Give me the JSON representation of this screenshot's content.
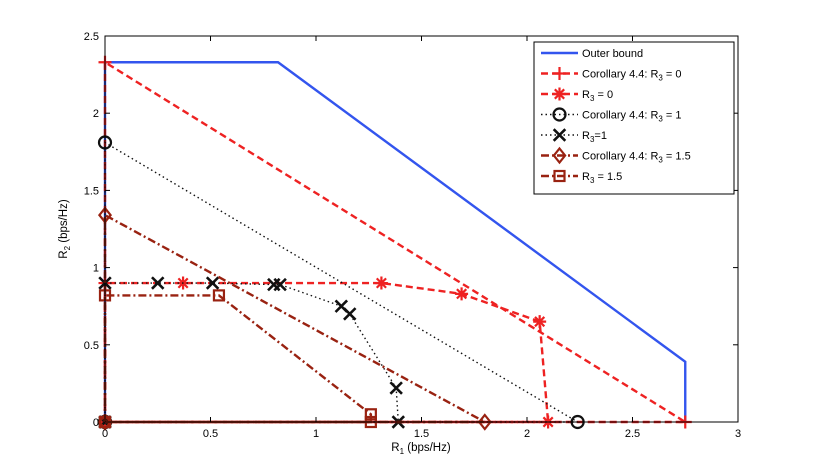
{
  "chart_data": {
    "type": "line",
    "title": "",
    "xlabel": {
      "main": "R",
      "sub": "1",
      "rest": " (bps/Hz)"
    },
    "ylabel": {
      "main": "R",
      "sub": "2",
      "rest": " (bps/Hz)"
    },
    "xlim": [
      0,
      3
    ],
    "ylim": [
      0,
      2.5
    ],
    "xticks": [
      0,
      0.5,
      1,
      1.5,
      2,
      2.5,
      3
    ],
    "xtick_labels": [
      "0",
      "0.5",
      "1",
      "1.5",
      "2",
      "2.5",
      "3"
    ],
    "yticks": [
      0,
      0.5,
      1,
      1.5,
      2,
      2.5
    ],
    "ytick_labels": [
      "0",
      "0.5",
      "1",
      "1.5",
      "2",
      "2.5"
    ],
    "grid": false,
    "legend_position": "top-right",
    "series": [
      {
        "key": "outer",
        "name": "Outer bound",
        "legend": {
          "main": "Outer bound",
          "sub": "",
          "rest": ""
        },
        "color": "#3355ee",
        "line": "solid",
        "marker": "none",
        "x": [
          0,
          0,
          0.82,
          2.75,
          2.75
        ],
        "y": [
          0,
          2.33,
          2.33,
          0.39,
          0
        ]
      },
      {
        "key": "cor0",
        "name": "Corollary 4.4: R3 = 0",
        "legend": {
          "main": "Corollary 4.4: R",
          "sub": "3",
          "rest": " = 0"
        },
        "color": "#ee2222",
        "line": "dashed",
        "marker": "plus",
        "x": [
          0,
          0,
          2.75,
          0
        ],
        "y": [
          0,
          2.33,
          0,
          0
        ]
      },
      {
        "key": "r0",
        "name": "R3 = 0",
        "legend": {
          "main": "R",
          "sub": "3",
          "rest": " = 0"
        },
        "color": "#ee2222",
        "line": "dashed",
        "marker": "asterisk",
        "x": [
          0,
          0,
          0.37,
          1.31,
          1.69,
          2.06,
          2.1,
          0
        ],
        "y": [
          0,
          0.9,
          0.9,
          0.9,
          0.83,
          0.65,
          0,
          0
        ]
      },
      {
        "key": "cor1",
        "name": "Corollary 4.4: R3 = 1",
        "legend": {
          "main": "Corollary 4.4: R",
          "sub": "3",
          "rest": " = 1"
        },
        "color": "#111111",
        "line": "dotted",
        "marker": "circle",
        "x": [
          0,
          0,
          2.24,
          0
        ],
        "y": [
          0,
          1.81,
          0,
          0
        ]
      },
      {
        "key": "r1",
        "name": "R3=1",
        "legend": {
          "main": "R",
          "sub": "3",
          "rest": "=1"
        },
        "color": "#111111",
        "line": "dotted",
        "marker": "x",
        "x": [
          0,
          0,
          0.25,
          0.51,
          0.8,
          0.83,
          1.12,
          1.16,
          1.38,
          1.39,
          0
        ],
        "y": [
          0,
          0.9,
          0.9,
          0.9,
          0.89,
          0.89,
          0.75,
          0.7,
          0.22,
          0,
          0
        ]
      },
      {
        "key": "cor15",
        "name": "Corollary 4.4: R3 = 1.5",
        "legend": {
          "main": "Corollary 4.4: R",
          "sub": "3",
          "rest": " = 1.5"
        },
        "color": "#992211",
        "line": "dashdot",
        "marker": "diamond",
        "x": [
          0,
          0,
          1.8,
          0
        ],
        "y": [
          0,
          1.34,
          0,
          0
        ]
      },
      {
        "key": "r15",
        "name": "R3 = 1.5",
        "legend": {
          "main": "R",
          "sub": "3",
          "rest": " = 1.5"
        },
        "color": "#992211",
        "line": "dashdot",
        "marker": "square",
        "x": [
          0,
          0,
          0.54,
          1.26,
          1.26,
          0
        ],
        "y": [
          0,
          0.82,
          0.82,
          0.05,
          0,
          0
        ]
      }
    ]
  }
}
